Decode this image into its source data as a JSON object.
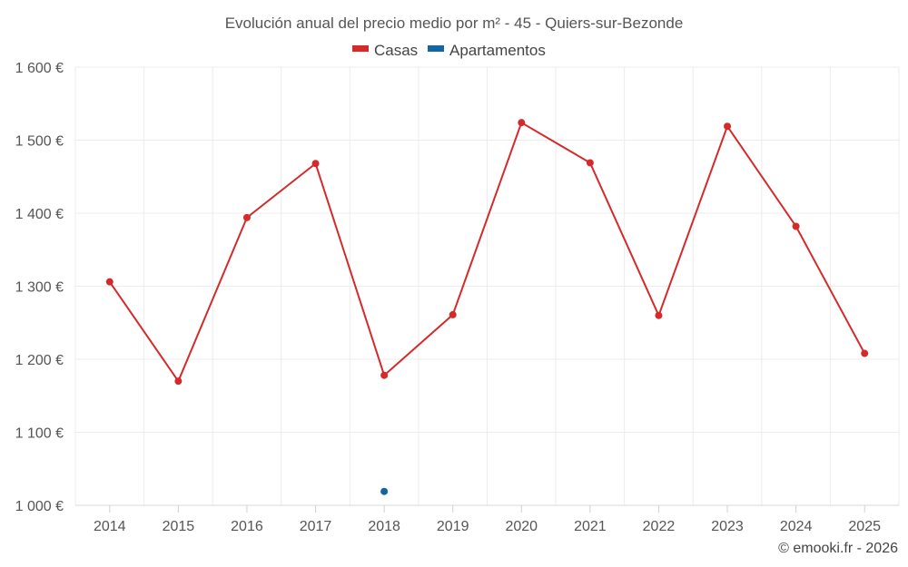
{
  "chart_data": {
    "type": "line",
    "title": "Evolución anual del precio medio por m² - 45 - Quiers-sur-Bezonde",
    "categories": [
      "2014",
      "2015",
      "2016",
      "2017",
      "2018",
      "2019",
      "2020",
      "2021",
      "2022",
      "2023",
      "2024",
      "2025"
    ],
    "series": [
      {
        "name": "Casas",
        "color": "#d42a2a",
        "values": [
          1306,
          1170,
          1394,
          1468,
          1178,
          1261,
          1524,
          1469,
          1260,
          1519,
          1382,
          1208
        ]
      },
      {
        "name": "Apartamentos",
        "color": "#1466a3",
        "values": [
          null,
          null,
          null,
          null,
          1019,
          null,
          null,
          null,
          null,
          null,
          null,
          null
        ]
      }
    ],
    "ylim": [
      1000,
      1600
    ],
    "yticks": [
      1000,
      1100,
      1200,
      1300,
      1400,
      1500,
      1600
    ],
    "ytick_labels": [
      "1 000 €",
      "1 100 €",
      "1 200 €",
      "1 300 €",
      "1 400 €",
      "1 500 €",
      "1 600 €"
    ],
    "xlabel": "",
    "ylabel": "",
    "grid": true,
    "legend": "top-center"
  },
  "credit": "© emooki.fr - 2026"
}
